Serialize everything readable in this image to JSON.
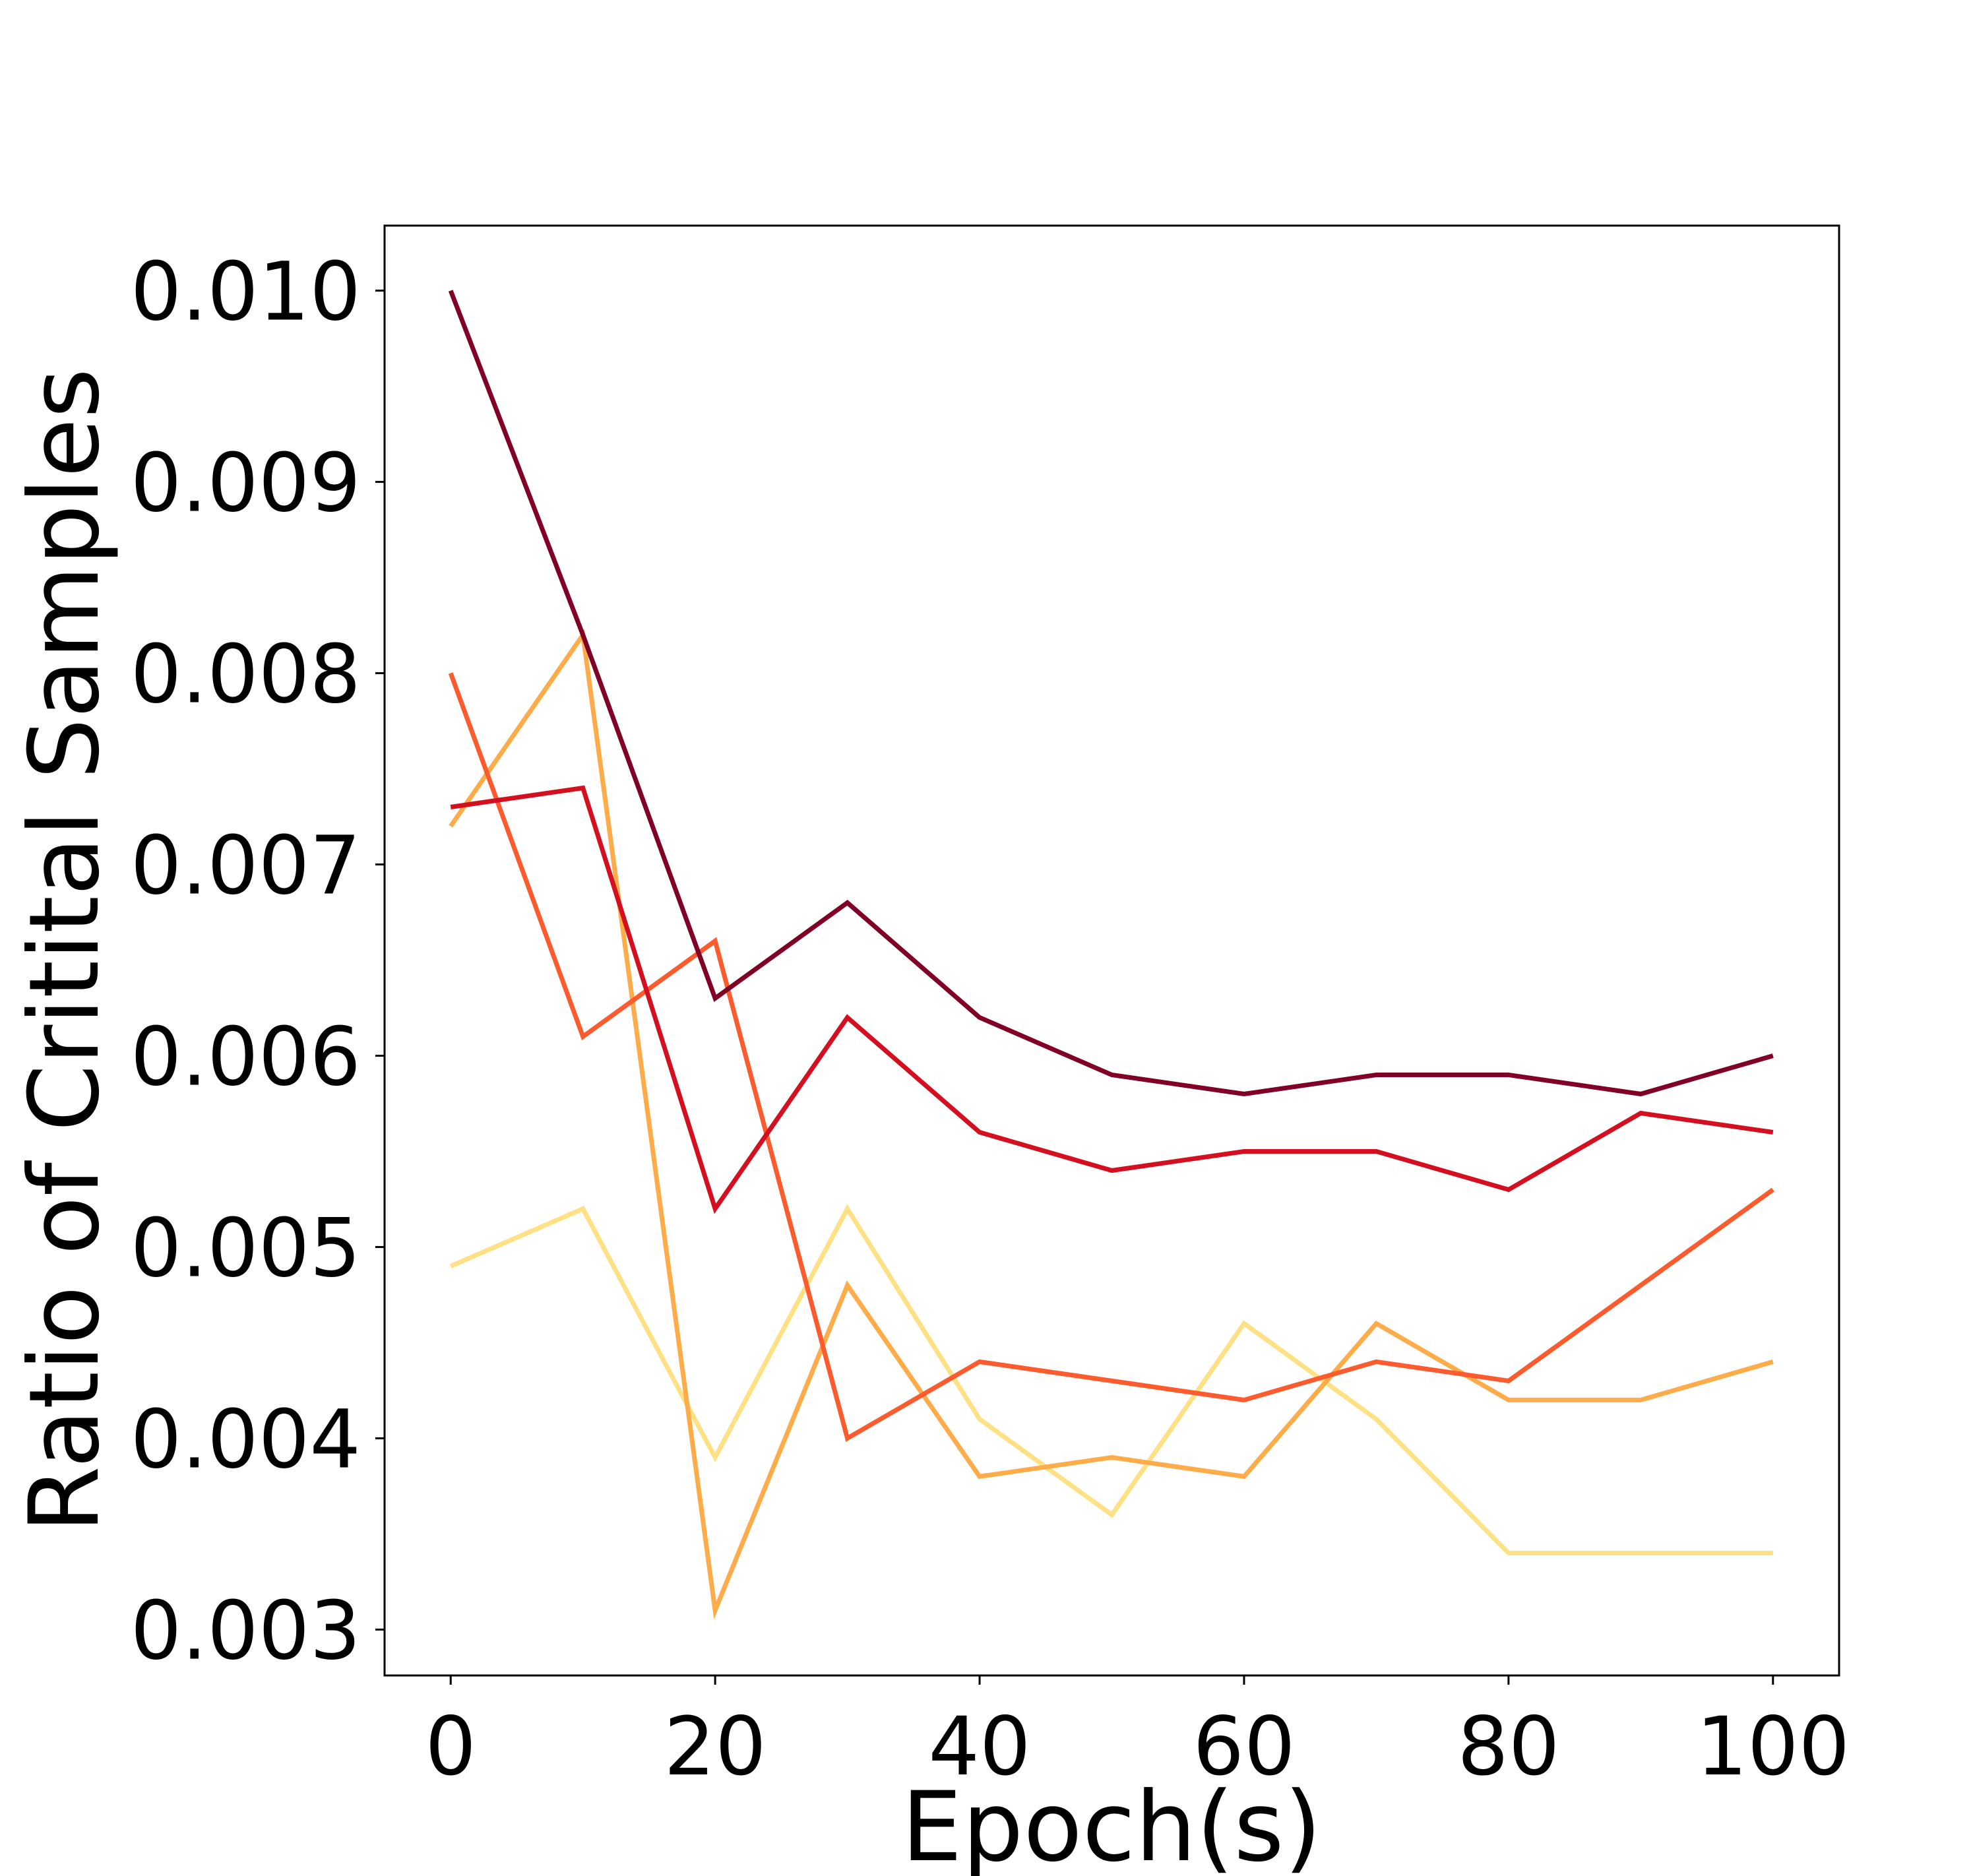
{
  "chart_data": {
    "type": "line",
    "title": "",
    "xlabel": "Epoch(s)",
    "ylabel": "Ratio of Critital Samples",
    "xlim": [
      -5,
      105
    ],
    "ylim": [
      0.00276,
      0.01034
    ],
    "xticks": [
      0,
      20,
      40,
      60,
      80,
      100
    ],
    "xtick_labels": [
      "0",
      "20",
      "40",
      "60",
      "80",
      "100"
    ],
    "yticks": [
      0.003,
      0.004,
      0.005,
      0.006,
      0.007,
      0.008,
      0.009,
      0.01
    ],
    "ytick_labels": [
      "0.003",
      "0.004",
      "0.005",
      "0.006",
      "0.007",
      "0.008",
      "0.009",
      "0.010"
    ],
    "grid": false,
    "legend": "none",
    "x": [
      0,
      10,
      20,
      30,
      40,
      50,
      60,
      70,
      80,
      90,
      100
    ],
    "series": [
      {
        "color": "#fee085",
        "values": [
          0.0049,
          0.0052,
          0.0039,
          0.0052,
          0.0041,
          0.0036,
          0.0046,
          0.0041,
          0.0034,
          0.0034,
          0.0034
        ]
      },
      {
        "color": "#feab4a",
        "values": [
          0.0072,
          0.0082,
          0.0031,
          0.0048,
          0.0038,
          0.0039,
          0.0038,
          0.0046,
          0.0042,
          0.0042,
          0.0044
        ]
      },
      {
        "color": "#fc5b2e",
        "values": [
          0.008,
          0.0061,
          0.0066,
          0.004,
          0.0044,
          0.0043,
          0.0042,
          0.0044,
          0.0043,
          0.0048,
          0.0053
        ]
      },
      {
        "color": "#d41020",
        "values": [
          0.0073,
          0.0074,
          0.0052,
          0.0062,
          0.0056,
          0.0054,
          0.0055,
          0.0055,
          0.0053,
          0.0057,
          0.0056
        ]
      },
      {
        "color": "#800026",
        "values": [
          0.01,
          0.0082,
          0.0063,
          0.0068,
          0.0062,
          0.0059,
          0.0058,
          0.0059,
          0.0059,
          0.0058,
          0.006
        ]
      }
    ]
  }
}
